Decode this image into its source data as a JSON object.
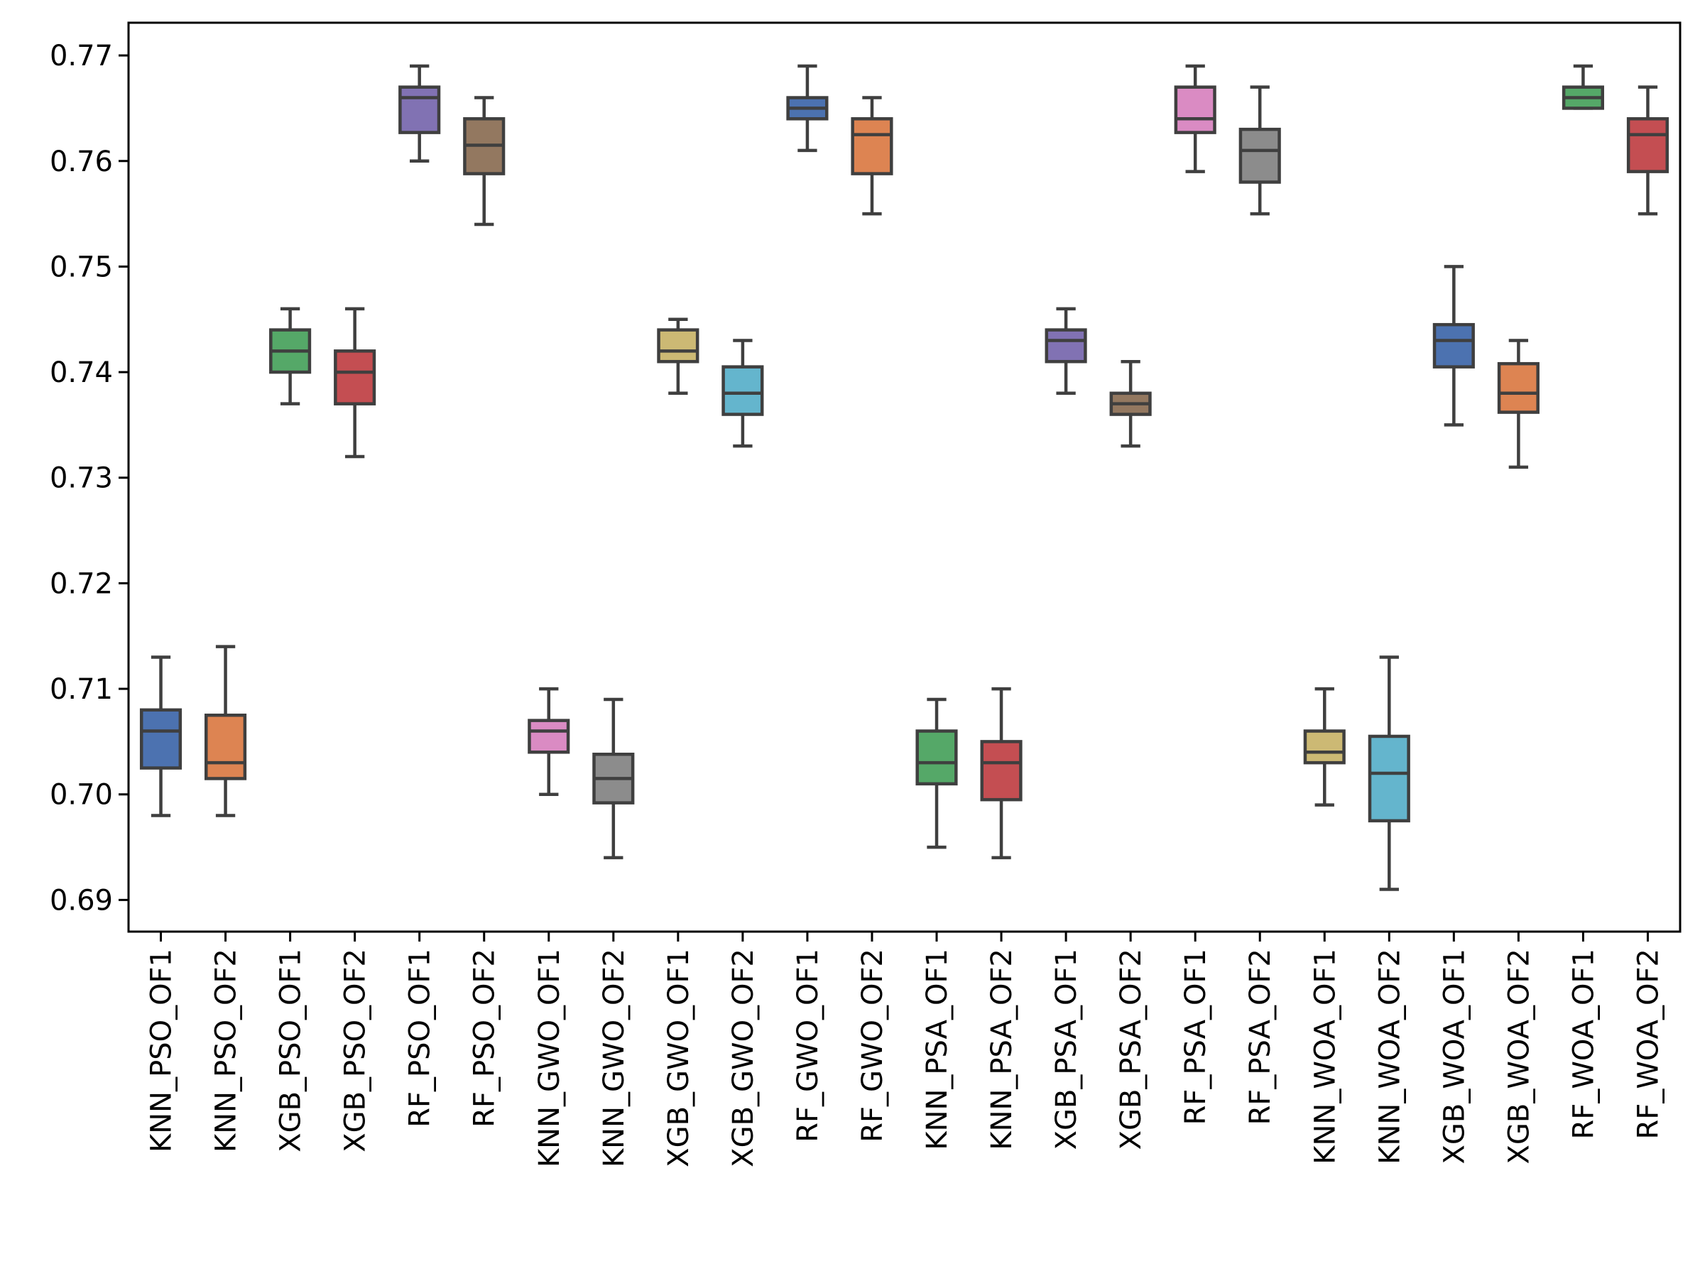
{
  "chart_data": {
    "type": "box",
    "title": "",
    "xlabel": "",
    "ylabel": "",
    "ylim": [
      0.687,
      0.7731
    ],
    "yticks": [
      0.69,
      0.7,
      0.71,
      0.72,
      0.73,
      0.74,
      0.75,
      0.76,
      0.77
    ],
    "ytick_labels": [
      "0.69",
      "0.70",
      "0.71",
      "0.72",
      "0.73",
      "0.74",
      "0.75",
      "0.76",
      "0.77"
    ],
    "grid": false,
    "categories": [
      "KNN_PSO_OF1",
      "KNN_PSO_OF2",
      "XGB_PSO_OF1",
      "XGB_PSO_OF2",
      "RF_PSO_OF1",
      "RF_PSO_OF2",
      "KNN_GWO_OF1",
      "KNN_GWO_OF2",
      "XGB_GWO_OF1",
      "XGB_GWO_OF2",
      "RF_GWO_OF1",
      "RF_GWO_OF2",
      "KNN_PSA_OF1",
      "KNN_PSA_OF2",
      "XGB_PSA_OF1",
      "XGB_PSA_OF2",
      "RF_PSA_OF1",
      "RF_PSA_OF2",
      "KNN_WOA_OF1",
      "KNN_WOA_OF2",
      "XGB_WOA_OF1",
      "XGB_WOA_OF2",
      "RF_WOA_OF1",
      "RF_WOA_OF2"
    ],
    "boxes": [
      {
        "min": 0.698,
        "q1": 0.7025,
        "median": 0.706,
        "q3": 0.708,
        "max": 0.713,
        "color": "#4c72b0"
      },
      {
        "min": 0.698,
        "q1": 0.7015,
        "median": 0.703,
        "q3": 0.7075,
        "max": 0.714,
        "color": "#dd8452"
      },
      {
        "min": 0.737,
        "q1": 0.74,
        "median": 0.742,
        "q3": 0.744,
        "max": 0.746,
        "color": "#55a868"
      },
      {
        "min": 0.732,
        "q1": 0.737,
        "median": 0.74,
        "q3": 0.742,
        "max": 0.746,
        "color": "#c44e52"
      },
      {
        "min": 0.76,
        "q1": 0.7627,
        "median": 0.766,
        "q3": 0.767,
        "max": 0.769,
        "color": "#8172b3"
      },
      {
        "min": 0.754,
        "q1": 0.7588,
        "median": 0.7615,
        "q3": 0.764,
        "max": 0.766,
        "color": "#937860"
      },
      {
        "min": 0.7,
        "q1": 0.704,
        "median": 0.706,
        "q3": 0.707,
        "max": 0.71,
        "color": "#da8bc3"
      },
      {
        "min": 0.694,
        "q1": 0.6992,
        "median": 0.7015,
        "q3": 0.7038,
        "max": 0.709,
        "color": "#8c8c8c"
      },
      {
        "min": 0.738,
        "q1": 0.741,
        "median": 0.742,
        "q3": 0.744,
        "max": 0.745,
        "color": "#ccb974"
      },
      {
        "min": 0.733,
        "q1": 0.736,
        "median": 0.738,
        "q3": 0.7405,
        "max": 0.743,
        "color": "#64b5cd"
      },
      {
        "min": 0.761,
        "q1": 0.764,
        "median": 0.765,
        "q3": 0.766,
        "max": 0.769,
        "color": "#4c72b0"
      },
      {
        "min": 0.755,
        "q1": 0.7588,
        "median": 0.7625,
        "q3": 0.764,
        "max": 0.766,
        "color": "#dd8452"
      },
      {
        "min": 0.695,
        "q1": 0.701,
        "median": 0.703,
        "q3": 0.706,
        "max": 0.709,
        "color": "#55a868"
      },
      {
        "min": 0.694,
        "q1": 0.6995,
        "median": 0.703,
        "q3": 0.705,
        "max": 0.71,
        "color": "#c44e52"
      },
      {
        "min": 0.738,
        "q1": 0.741,
        "median": 0.743,
        "q3": 0.744,
        "max": 0.746,
        "color": "#8172b3"
      },
      {
        "min": 0.733,
        "q1": 0.736,
        "median": 0.737,
        "q3": 0.738,
        "max": 0.741,
        "color": "#937860"
      },
      {
        "min": 0.759,
        "q1": 0.7627,
        "median": 0.764,
        "q3": 0.767,
        "max": 0.769,
        "color": "#da8bc3"
      },
      {
        "min": 0.755,
        "q1": 0.758,
        "median": 0.761,
        "q3": 0.763,
        "max": 0.767,
        "color": "#8c8c8c"
      },
      {
        "min": 0.699,
        "q1": 0.703,
        "median": 0.704,
        "q3": 0.706,
        "max": 0.71,
        "color": "#ccb974"
      },
      {
        "min": 0.691,
        "q1": 0.6975,
        "median": 0.702,
        "q3": 0.7055,
        "max": 0.713,
        "color": "#64b5cd"
      },
      {
        "min": 0.735,
        "q1": 0.7405,
        "median": 0.743,
        "q3": 0.7445,
        "max": 0.75,
        "color": "#4c72b0"
      },
      {
        "min": 0.731,
        "q1": 0.7362,
        "median": 0.738,
        "q3": 0.7408,
        "max": 0.743,
        "color": "#dd8452"
      },
      {
        "min": 0.765,
        "q1": 0.765,
        "median": 0.766,
        "q3": 0.767,
        "max": 0.769,
        "color": "#55a868"
      },
      {
        "min": 0.755,
        "q1": 0.759,
        "median": 0.7625,
        "q3": 0.764,
        "max": 0.767,
        "color": "#c44e52"
      }
    ]
  }
}
